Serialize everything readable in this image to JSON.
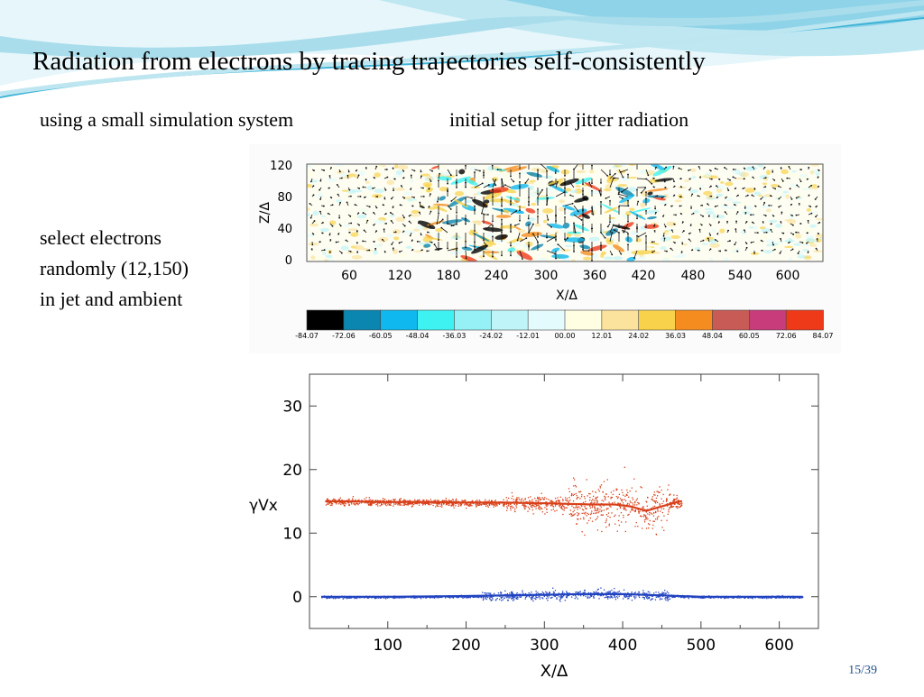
{
  "slide": {
    "title": "Radiation from electrons by tracing trajectories self-consistently",
    "subtitle_left": "using a small simulation system",
    "subtitle_right": "initial setup for jitter radiation",
    "notes": [
      "select electrons",
      "randomly (12,150)",
      "in jet and ambient"
    ],
    "page_number": "15/39"
  },
  "colors": {
    "wave_light": "#d6eff6",
    "wave_mid": "#8fd3e8",
    "wave_dark": "#3fb3d6",
    "jet_series": "#d8401a",
    "ambient_series": "#2244c0"
  },
  "field_plot": {
    "ylabel": "Z/Δ",
    "xlabel": "X/Δ",
    "y_ticks": [
      "120",
      "80",
      "40",
      "0"
    ],
    "x_ticks": [
      "60",
      "120",
      "180",
      "240",
      "300",
      "360",
      "420",
      "480",
      "540",
      "600"
    ],
    "colorbar_labels": [
      "-84.07",
      "-72.06",
      "-60.05",
      "-48.04",
      "-36.03",
      "-24.02",
      "-12.01",
      "00.00",
      "12.01",
      "24.02",
      "36.03",
      "48.04",
      "60.05",
      "72.06",
      "84.07"
    ],
    "colorbar_colors": [
      "#000000",
      "#0a86b0",
      "#0fb8ee",
      "#3ef2f2",
      "#95f1f6",
      "#bff4f8",
      "#e3fbfc",
      "#fffde2",
      "#fbe39e",
      "#f8d24a",
      "#f58c1f",
      "#c85b55",
      "#c83c7c",
      "#ef3a1a"
    ]
  },
  "chart_data": {
    "type": "scatter",
    "xlabel": "X/Δ",
    "ylabel": "γVx",
    "xlim": [
      0,
      650
    ],
    "ylim": [
      -5,
      35
    ],
    "x_ticks": [
      100,
      200,
      300,
      400,
      500,
      600
    ],
    "y_ticks": [
      0,
      10,
      20,
      30
    ],
    "series": [
      {
        "color": "#d8401a",
        "x": [
          20,
          50,
          100,
          150,
          200,
          250,
          300,
          330,
          360,
          390,
          410,
          430,
          450,
          470,
          475
        ],
        "y": [
          15.0,
          15.0,
          14.9,
          14.9,
          14.8,
          14.8,
          14.7,
          14.6,
          14.5,
          14.5,
          14.2,
          13.5,
          14.2,
          14.9,
          15.0
        ]
      },
      {
        "color": "#2244c0",
        "x": [
          15,
          100,
          200,
          300,
          350,
          400,
          450,
          500,
          600,
          630
        ],
        "y": [
          0.0,
          0.0,
          0.1,
          0.3,
          0.4,
          0.4,
          0.2,
          0.0,
          0.0,
          0.0
        ]
      }
    ]
  }
}
